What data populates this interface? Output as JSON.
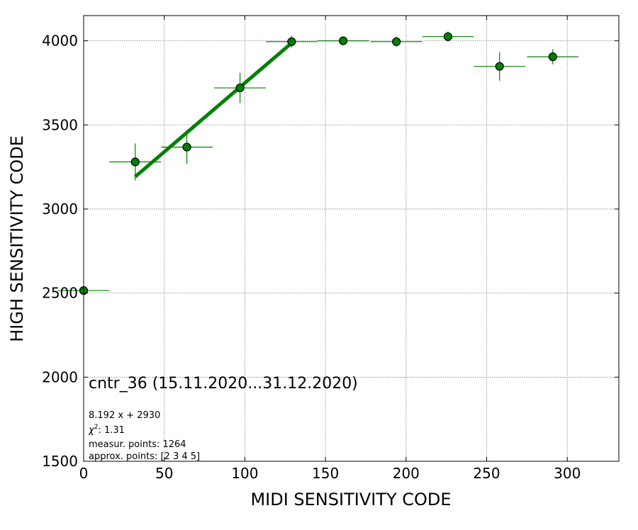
{
  "chart_data": {
    "type": "scatter",
    "title": "",
    "xlabel": "MIDI SENSITIVITY CODE",
    "ylabel": "HIGH SENSITIVITY CODE",
    "xlim": [
      0,
      332
    ],
    "ylim": [
      1500,
      4150
    ],
    "xticks": [
      0,
      50,
      100,
      150,
      200,
      250,
      300
    ],
    "yticks": [
      1500,
      2000,
      2500,
      3000,
      3500,
      4000
    ],
    "grid": true,
    "legend": "none",
    "colors": {
      "series": "#008000",
      "marker_edge": "#000000"
    },
    "points": [
      {
        "x": 0,
        "y": 2515,
        "xerr": 16,
        "yerr": 0
      },
      {
        "x": 32,
        "y": 3280,
        "xerr": 16,
        "yerr": 110
      },
      {
        "x": 64,
        "y": 3368,
        "xerr": 16,
        "yerr": 100
      },
      {
        "x": 97,
        "y": 3720,
        "xerr": 16,
        "yerr": 90
      },
      {
        "x": 129,
        "y": 3995,
        "xerr": 16,
        "yerr": 35
      },
      {
        "x": 161,
        "y": 4000,
        "xerr": 16,
        "yerr": 15
      },
      {
        "x": 194,
        "y": 3995,
        "xerr": 16,
        "yerr": 30
      },
      {
        "x": 226,
        "y": 4025,
        "xerr": 16,
        "yerr": 30
      },
      {
        "x": 258,
        "y": 3848,
        "xerr": 16,
        "yerr": 85
      },
      {
        "x": 291,
        "y": 3905,
        "xerr": 16,
        "yerr": 45
      }
    ],
    "fit_line": {
      "slope": 8.192,
      "intercept": 2930,
      "x_range": [
        32,
        129
      ]
    },
    "annotations": {
      "title_text": "cntr_36 (15.11.2020...31.12.2020)",
      "equation": "8.192 x + 2930",
      "chi2_label": "χ",
      "chi2_sup": "2",
      "chi2_value": ": 1.31",
      "measur_points": "measur. points: 1264",
      "approx_points": "approx. points: [2 3 4 5]"
    }
  }
}
